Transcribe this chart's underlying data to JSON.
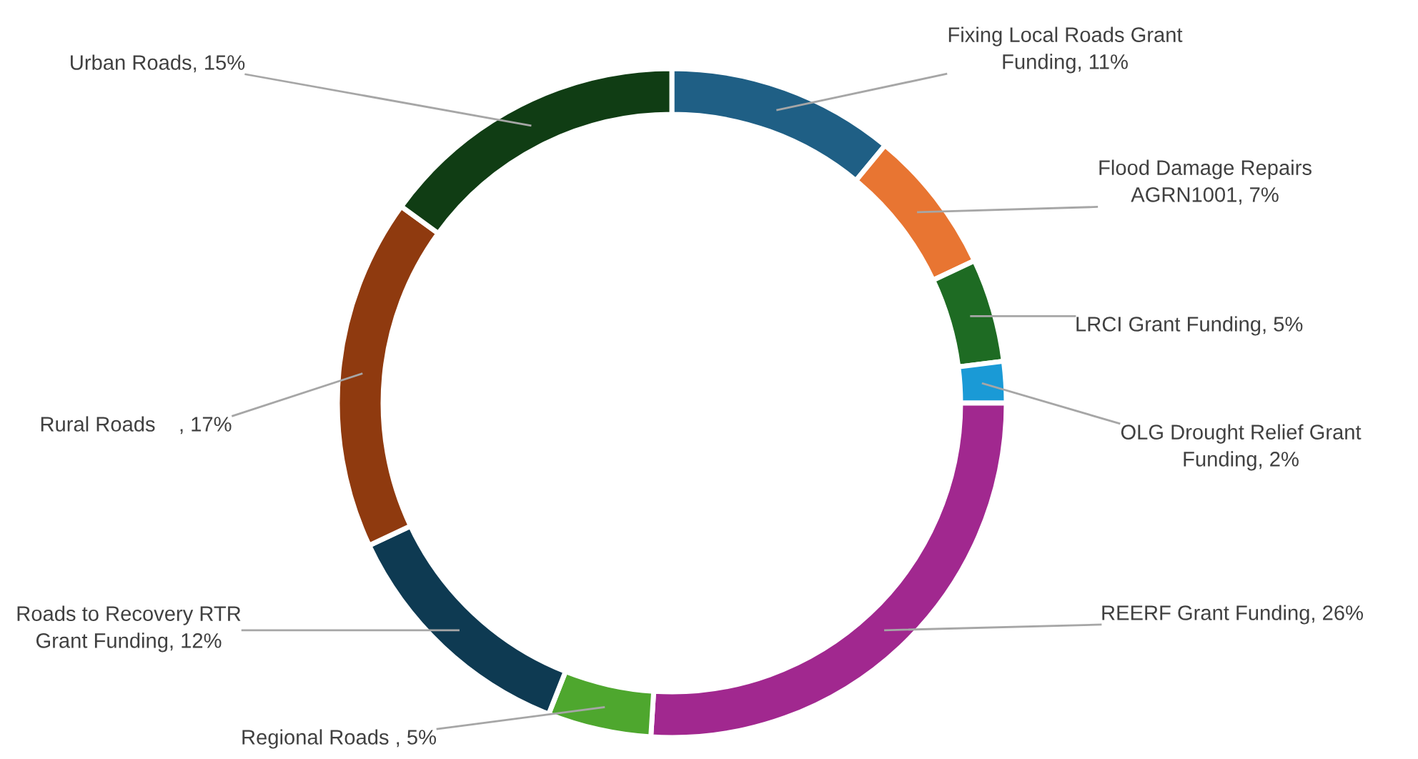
{
  "chart_data": {
    "type": "donut",
    "categories": [
      "Fixing Local Roads Grant\nFunding",
      "Flood Damage Repairs\nAGRN1001",
      "LRCI Grant Funding",
      "OLG Drought Relief Grant\nFunding",
      "REERF Grant Funding",
      "Regional Roads ",
      "Roads to Recovery RTR\nGrant Funding",
      "Rural Roads    ",
      "Urban Roads"
    ],
    "values": [
      11,
      7,
      5,
      2,
      26,
      5,
      12,
      17,
      15
    ],
    "value_labels": [
      "11%",
      "7%",
      "5%",
      "2%",
      "26%",
      "5%",
      "12%",
      "17%",
      "15%"
    ],
    "colors": [
      "#1f5f85",
      "#e87532",
      "#1e6b23",
      "#1a9ad6",
      "#a1288f",
      "#4ea72e",
      "#0e3a52",
      "#8f3a0f",
      "#103d14"
    ]
  }
}
